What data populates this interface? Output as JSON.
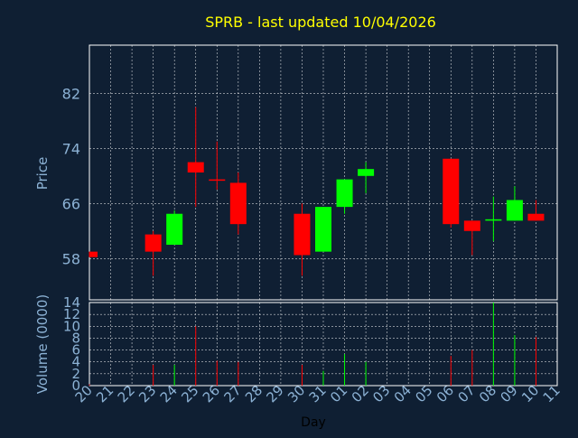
{
  "colors": {
    "background": "#0f1f33",
    "title": "#ffff00",
    "axis_text": "#8cb2d5",
    "frame": "#ffffff",
    "grid": "#ffffff",
    "up": "#00ff00",
    "down": "#ff0000"
  },
  "chart_data": {
    "type": "candlestick",
    "title": "SPRB - last updated 10/04/2026",
    "xlabel": "Day",
    "price_panel": {
      "ylabel": "Price",
      "ylim": [
        52,
        89
      ],
      "yticks": [
        58,
        66,
        74,
        82
      ],
      "grid": true
    },
    "volume_panel": {
      "ylabel": "Volume (0000)",
      "ylim": [
        0,
        14
      ],
      "yticks": [
        0,
        2,
        4,
        6,
        8,
        10,
        12,
        14
      ],
      "grid": true
    },
    "x_tick_labels": [
      "20",
      "21",
      "22",
      "23",
      "24",
      "25",
      "26",
      "27",
      "28",
      "29",
      "30",
      "31",
      "01",
      "02",
      "03",
      "04",
      "05",
      "06",
      "07",
      "08",
      "09",
      "10",
      "11"
    ],
    "candles": [
      {
        "day": "20",
        "open": 59.0,
        "high": 59.0,
        "low": 58.2,
        "close": 58.2,
        "volume": 0.2
      },
      {
        "day": "23",
        "open": 61.5,
        "high": 62.0,
        "low": 55.5,
        "close": 59.0,
        "volume": 3.5
      },
      {
        "day": "24",
        "open": 60.0,
        "high": 65.0,
        "low": 60.0,
        "close": 64.5,
        "volume": 3.5
      },
      {
        "day": "25",
        "open": 72.0,
        "high": 80.0,
        "low": 65.5,
        "close": 70.5,
        "volume": 10.0
      },
      {
        "day": "26",
        "open": 69.5,
        "high": 75.0,
        "low": 68.0,
        "close": 69.3,
        "volume": 4.2
      },
      {
        "day": "27",
        "open": 69.0,
        "high": 70.5,
        "low": 61.5,
        "close": 63.0,
        "volume": 4.0
      },
      {
        "day": "30",
        "open": 64.5,
        "high": 66.0,
        "low": 55.5,
        "close": 58.5,
        "volume": 3.5
      },
      {
        "day": "31",
        "open": 59.0,
        "high": 65.5,
        "low": 59.0,
        "close": 65.5,
        "volume": 2.5
      },
      {
        "day": "01",
        "open": 65.5,
        "high": 69.5,
        "low": 64.5,
        "close": 69.5,
        "volume": 5.3
      },
      {
        "day": "02",
        "open": 70.0,
        "high": 72.0,
        "low": 67.5,
        "close": 71.0,
        "volume": 4.0
      },
      {
        "day": "06",
        "open": 72.5,
        "high": 72.5,
        "low": 62.5,
        "close": 63.0,
        "volume": 5.0
      },
      {
        "day": "07",
        "open": 63.5,
        "high": 63.5,
        "low": 58.5,
        "close": 62.0,
        "volume": 6.0
      },
      {
        "day": "08",
        "open": 63.5,
        "high": 67.0,
        "low": 60.5,
        "close": 63.7,
        "volume": 14.0
      },
      {
        "day": "09",
        "open": 63.5,
        "high": 68.5,
        "low": 63.5,
        "close": 66.5,
        "volume": 8.5
      },
      {
        "day": "10",
        "open": 64.5,
        "high": 66.5,
        "low": 63.5,
        "close": 63.5,
        "volume": 8.2
      }
    ]
  }
}
